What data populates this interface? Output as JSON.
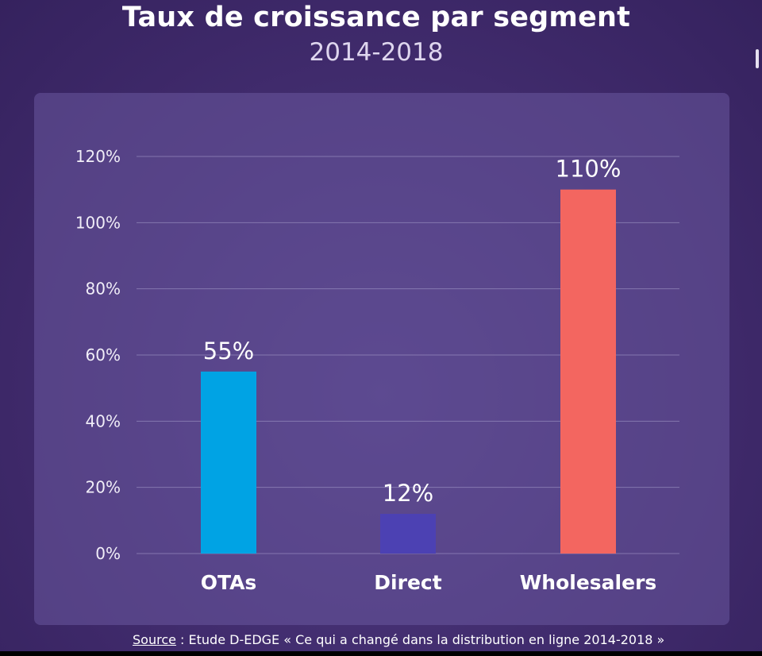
{
  "title": "Taux de croissance par segment",
  "subtitle": "2014-2018",
  "source": {
    "label": "Source",
    "text": " : Etude D-EDGE «  Ce qui a changé dans la distribution en ligne 2014-2018 »"
  },
  "colors": {
    "background": "#3f2a6e",
    "otas": "#00a3e4",
    "direct": "#4c41b3",
    "wholesalers": "#f36660"
  },
  "chart_data": {
    "type": "bar",
    "title": "Taux de croissance par segment",
    "subtitle": "2014-2018",
    "categories": [
      "OTAs",
      "Direct",
      "Wholesalers"
    ],
    "values": [
      55,
      12,
      110
    ],
    "value_labels": [
      "55%",
      "12%",
      "110%"
    ],
    "bar_colors": [
      "#00a3e4",
      "#4c41b3",
      "#f36660"
    ],
    "ylim": [
      0,
      120
    ],
    "yticks": [
      0,
      20,
      40,
      60,
      80,
      100,
      120
    ],
    "ytick_labels": [
      "0%",
      "20%",
      "40%",
      "60%",
      "80%",
      "100%",
      "120%"
    ],
    "grid": true,
    "xlabel": "",
    "ylabel": ""
  }
}
